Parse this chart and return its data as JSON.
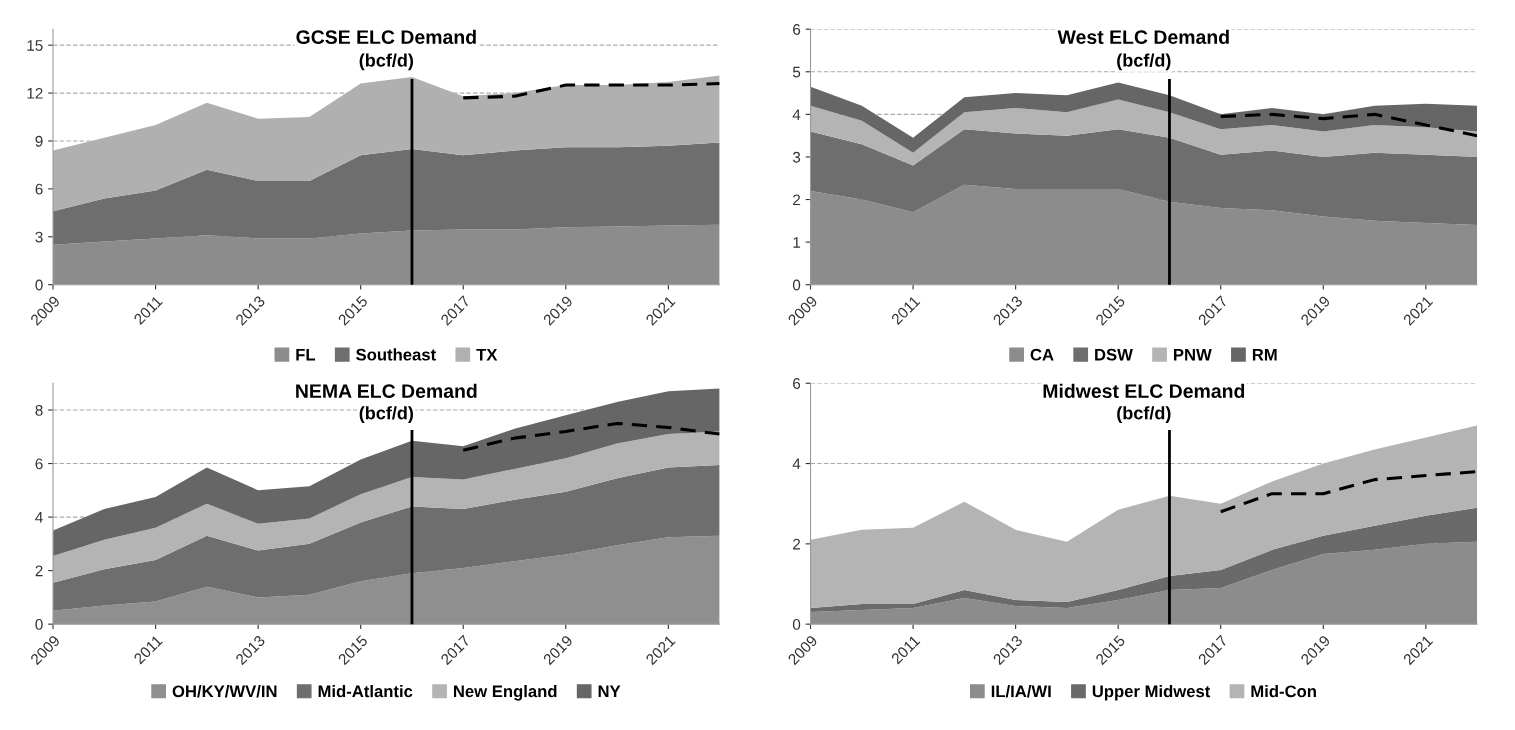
{
  "chart_data": [
    {
      "type": "area",
      "stacked": true,
      "title": "GCSE ELC Demand",
      "subtitle": "(bcf/d)",
      "x": [
        2009,
        2010,
        2011,
        2012,
        2013,
        2014,
        2015,
        2016,
        2017,
        2018,
        2019,
        2020,
        2021,
        2022
      ],
      "xlim": [
        2009,
        2022
      ],
      "xticks": [
        2009,
        2011,
        2013,
        2015,
        2017,
        2019,
        2021
      ],
      "ylim": [
        0,
        16
      ],
      "yticks": [
        0,
        3,
        6,
        9,
        12,
        15
      ],
      "grid": "y",
      "legend": "bottom",
      "ref_lines": [
        {
          "axis": "x",
          "value": 2016,
          "color": "#000000",
          "line_style": "solid"
        }
      ],
      "series": [
        {
          "name": "FL",
          "color": "#8c8c8c",
          "values": [
            2.5,
            2.7,
            2.9,
            3.1,
            2.9,
            2.9,
            3.2,
            3.4,
            3.45,
            3.45,
            3.6,
            3.65,
            3.7,
            3.75
          ]
        },
        {
          "name": "Southeast",
          "color": "#6e6e6e",
          "values": [
            2.1,
            2.7,
            3.0,
            4.1,
            3.6,
            3.6,
            4.9,
            5.1,
            4.65,
            4.95,
            5.0,
            4.95,
            5.0,
            5.15
          ]
        },
        {
          "name": "TX",
          "color": "#b0b0b0",
          "values": [
            3.8,
            3.8,
            4.1,
            4.2,
            3.9,
            4.0,
            4.5,
            4.5,
            3.7,
            3.6,
            3.9,
            3.9,
            4.0,
            4.2
          ]
        },
        {
          "type": "line",
          "line_style": "dashed",
          "color": "#000000",
          "x": [
            2017,
            2018,
            2019,
            2020,
            2021,
            2022
          ],
          "values": [
            11.7,
            11.8,
            12.5,
            12.5,
            12.5,
            12.6
          ]
        }
      ]
    },
    {
      "type": "area",
      "stacked": true,
      "title": "West ELC Demand",
      "subtitle": "(bcf/d)",
      "x": [
        2009,
        2010,
        2011,
        2012,
        2013,
        2014,
        2015,
        2016,
        2017,
        2018,
        2019,
        2020,
        2021,
        2022
      ],
      "xlim": [
        2009,
        2022
      ],
      "xticks": [
        2009,
        2011,
        2013,
        2015,
        2017,
        2019,
        2021
      ],
      "ylim": [
        0,
        6
      ],
      "yticks": [
        0,
        1,
        2,
        3,
        4,
        5,
        6
      ],
      "grid": "y",
      "legend": "bottom",
      "ref_lines": [
        {
          "axis": "x",
          "value": 2016,
          "color": "#000000",
          "line_style": "solid"
        }
      ],
      "series": [
        {
          "name": "CA",
          "color": "#8c8c8c",
          "values": [
            2.2,
            2.0,
            1.7,
            2.35,
            2.25,
            2.25,
            2.25,
            1.95,
            1.8,
            1.75,
            1.6,
            1.5,
            1.45,
            1.4
          ]
        },
        {
          "name": "DSW",
          "color": "#6e6e6e",
          "values": [
            1.4,
            1.3,
            1.1,
            1.3,
            1.3,
            1.25,
            1.4,
            1.5,
            1.25,
            1.4,
            1.4,
            1.6,
            1.6,
            1.6
          ]
        },
        {
          "name": "PNW",
          "color": "#b4b4b4",
          "values": [
            0.6,
            0.55,
            0.3,
            0.4,
            0.6,
            0.55,
            0.7,
            0.6,
            0.6,
            0.6,
            0.6,
            0.65,
            0.65,
            0.6
          ]
        },
        {
          "name": "RM",
          "color": "#666666",
          "values": [
            0.45,
            0.35,
            0.35,
            0.35,
            0.35,
            0.4,
            0.4,
            0.4,
            0.35,
            0.4,
            0.4,
            0.45,
            0.55,
            0.6
          ]
        },
        {
          "type": "line",
          "line_style": "dashed",
          "color": "#000000",
          "x": [
            2017,
            2018,
            2019,
            2020,
            2021,
            2022
          ],
          "values": [
            3.95,
            4.0,
            3.9,
            4.0,
            3.75,
            3.5
          ]
        }
      ]
    },
    {
      "type": "area",
      "stacked": true,
      "title": "NEMA ELC Demand",
      "subtitle": "(bcf/d)",
      "x": [
        2009,
        2010,
        2011,
        2012,
        2013,
        2014,
        2015,
        2016,
        2017,
        2018,
        2019,
        2020,
        2021,
        2022
      ],
      "xlim": [
        2009,
        2022
      ],
      "xticks": [
        2009,
        2011,
        2013,
        2015,
        2017,
        2019,
        2021
      ],
      "ylim": [
        0,
        9
      ],
      "yticks": [
        0,
        2,
        4,
        6,
        8
      ],
      "grid": "y",
      "legend": "bottom",
      "ref_lines": [
        {
          "axis": "x",
          "value": 2016,
          "color": "#000000",
          "line_style": "solid"
        }
      ],
      "series": [
        {
          "name": "OH/KY/WV/IN",
          "color": "#8f8f8f",
          "values": [
            0.5,
            0.7,
            0.85,
            1.4,
            1.0,
            1.1,
            1.6,
            1.9,
            2.1,
            2.35,
            2.6,
            2.95,
            3.25,
            3.3
          ]
        },
        {
          "name": "Mid-Atlantic",
          "color": "#6e6e6e",
          "values": [
            1.05,
            1.35,
            1.55,
            1.9,
            1.75,
            1.9,
            2.2,
            2.5,
            2.2,
            2.3,
            2.35,
            2.5,
            2.6,
            2.65
          ]
        },
        {
          "name": "New England",
          "color": "#b4b4b4",
          "values": [
            1.0,
            1.1,
            1.2,
            1.2,
            1.0,
            0.95,
            1.05,
            1.1,
            1.1,
            1.15,
            1.25,
            1.3,
            1.25,
            1.25
          ]
        },
        {
          "name": "NY",
          "color": "#666666",
          "values": [
            0.95,
            1.15,
            1.15,
            1.35,
            1.25,
            1.2,
            1.3,
            1.35,
            1.25,
            1.5,
            1.6,
            1.55,
            1.6,
            1.6
          ]
        },
        {
          "type": "line",
          "line_style": "dashed",
          "color": "#000000",
          "x": [
            2017,
            2018,
            2019,
            2020,
            2021,
            2022
          ],
          "values": [
            6.5,
            6.95,
            7.2,
            7.5,
            7.35,
            7.1
          ]
        }
      ]
    },
    {
      "type": "area",
      "stacked": true,
      "title": "Midwest ELC Demand",
      "subtitle": "(bcf/d)",
      "x": [
        2009,
        2010,
        2011,
        2012,
        2013,
        2014,
        2015,
        2016,
        2017,
        2018,
        2019,
        2020,
        2021,
        2022
      ],
      "xlim": [
        2009,
        2022
      ],
      "xticks": [
        2009,
        2011,
        2013,
        2015,
        2017,
        2019,
        2021
      ],
      "ylim": [
        0,
        6
      ],
      "yticks": [
        0,
        2,
        4,
        6
      ],
      "grid": "y",
      "legend": "bottom",
      "ref_lines": [
        {
          "axis": "x",
          "value": 2016,
          "color": "#000000",
          "line_style": "solid"
        }
      ],
      "series": [
        {
          "name": "IL/IA/WI",
          "color": "#8c8c8c",
          "values": [
            0.3,
            0.35,
            0.4,
            0.65,
            0.45,
            0.4,
            0.6,
            0.85,
            0.9,
            1.35,
            1.75,
            1.85,
            2.0,
            2.05
          ]
        },
        {
          "name": "Upper Midwest",
          "color": "#6a6a6a",
          "values": [
            0.1,
            0.15,
            0.1,
            0.2,
            0.15,
            0.15,
            0.25,
            0.35,
            0.45,
            0.5,
            0.45,
            0.6,
            0.7,
            0.85
          ]
        },
        {
          "name": "Mid-Con",
          "color": "#b4b4b4",
          "values": [
            1.7,
            1.85,
            1.9,
            2.2,
            1.75,
            1.5,
            2.0,
            2.0,
            1.65,
            1.7,
            1.8,
            1.9,
            1.95,
            2.05
          ]
        },
        {
          "type": "line",
          "line_style": "dashed",
          "color": "#000000",
          "x": [
            2017,
            2018,
            2019,
            2020,
            2021,
            2022
          ],
          "values": [
            2.8,
            3.25,
            3.25,
            3.6,
            3.7,
            3.8
          ]
        }
      ]
    }
  ]
}
